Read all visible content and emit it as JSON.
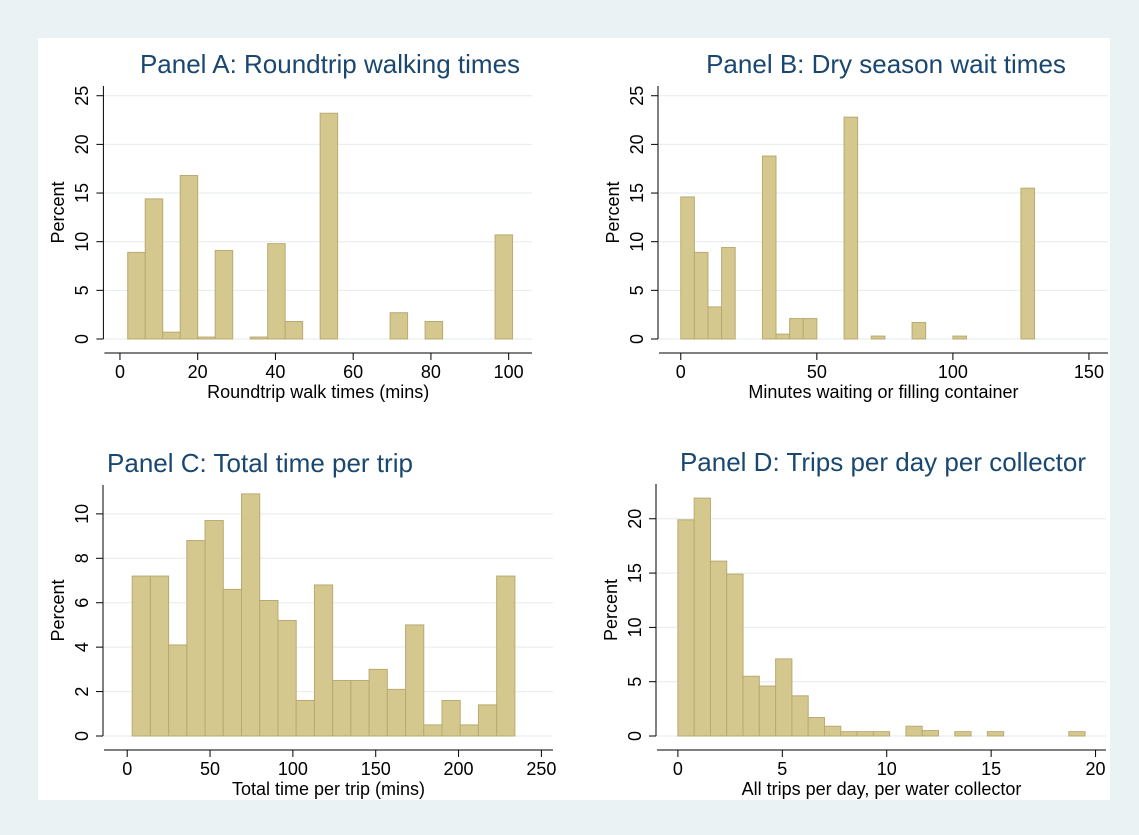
{
  "chart_data": [
    {
      "type": "histogram",
      "title": "Panel A: Roundtrip walking times",
      "xlabel": "Roundtrip walk times (mins)",
      "ylabel": "Percent",
      "bins": [
        2,
        6.5,
        11,
        15.5,
        20,
        24.5,
        29,
        33.5,
        38,
        42.5,
        47,
        51.5,
        56,
        60.5,
        65,
        69.5,
        74,
        78.5,
        83,
        87.5,
        92,
        96.5,
        101
      ],
      "values": [
        8.9,
        14.4,
        0.7,
        16.8,
        0.2,
        9.1,
        0,
        0.2,
        9.8,
        1.8,
        0,
        23.2,
        0,
        0,
        0,
        2.7,
        0,
        1.8,
        0,
        0,
        0,
        10.7
      ],
      "color": "#d4c88f",
      "xlim": [
        -4,
        106
      ],
      "ylim": [
        0,
        26
      ],
      "xticks": [
        0,
        20,
        40,
        60,
        80,
        100
      ],
      "yticks": [
        0,
        5,
        10,
        15,
        20,
        25
      ],
      "grid": true
    },
    {
      "type": "histogram",
      "title": "Panel B: Dry season wait times",
      "xlabel": "Minutes waiting or filling container",
      "ylabel": "Percent",
      "bins": [
        0,
        5,
        10,
        15,
        20,
        25,
        30,
        35,
        40,
        45,
        50,
        55,
        60,
        65,
        70,
        75,
        80,
        85,
        90,
        95,
        100,
        105,
        110,
        115,
        120,
        125,
        130
      ],
      "values": [
        14.6,
        8.9,
        3.3,
        9.4,
        0,
        0,
        18.8,
        0.5,
        2.1,
        2.1,
        0,
        0,
        22.8,
        0,
        0.3,
        0,
        0,
        1.7,
        0,
        0,
        0.3,
        0,
        0,
        0,
        0,
        15.5
      ],
      "color": "#d4c88f",
      "xlim": [
        -8,
        157
      ],
      "ylim": [
        0,
        26
      ],
      "xticks": [
        0,
        50,
        100,
        150
      ],
      "yticks": [
        0,
        5,
        10,
        15,
        20,
        25
      ],
      "grid": true
    },
    {
      "type": "histogram",
      "title": "Panel C: Total time per trip",
      "xlabel": "Total time per trip (mins)",
      "ylabel": "Percent",
      "bins": [
        3,
        14,
        25,
        36,
        47,
        58,
        69,
        80,
        91,
        102,
        113,
        124,
        135,
        146,
        157,
        168,
        179,
        190,
        201,
        212,
        223,
        234
      ],
      "values": [
        7.2,
        7.2,
        4.1,
        8.8,
        9.7,
        6.6,
        10.9,
        6.1,
        5.2,
        1.6,
        6.8,
        2.5,
        2.5,
        3.0,
        2.1,
        5.0,
        0.5,
        1.6,
        0.5,
        1.4,
        7.2
      ],
      "color": "#d4c88f",
      "xlim": [
        -14,
        257
      ],
      "ylim": [
        0,
        11.3
      ],
      "xticks": [
        0,
        50,
        100,
        150,
        200,
        250
      ],
      "yticks": [
        0,
        2,
        4,
        6,
        8,
        10
      ],
      "grid": true
    },
    {
      "type": "histogram",
      "title": "Panel D: Trips per day per collector",
      "xlabel": "All trips per day, per water collector",
      "ylabel": "Percent",
      "bins": [
        0,
        0.78,
        1.56,
        2.34,
        3.12,
        3.9,
        4.68,
        5.46,
        6.24,
        7.02,
        7.8,
        8.58,
        9.36,
        10.14,
        10.92,
        11.7,
        12.48,
        13.26,
        14.04,
        14.82,
        15.6,
        16.38,
        17.16,
        17.94,
        18.72,
        19.5
      ],
      "values": [
        19.9,
        21.9,
        16.1,
        14.9,
        5.5,
        4.6,
        7.1,
        3.7,
        1.7,
        0.9,
        0.4,
        0.4,
        0.4,
        0,
        0.9,
        0.5,
        0,
        0.4,
        0,
        0.4,
        0,
        0,
        0,
        0,
        0.4
      ],
      "color": "#d4c88f",
      "xlim": [
        -1,
        20.5
      ],
      "ylim": [
        0,
        23.2
      ],
      "xticks": [
        0,
        5,
        10,
        15,
        20
      ],
      "yticks": [
        0,
        5,
        10,
        15,
        20
      ],
      "grid": true
    }
  ]
}
